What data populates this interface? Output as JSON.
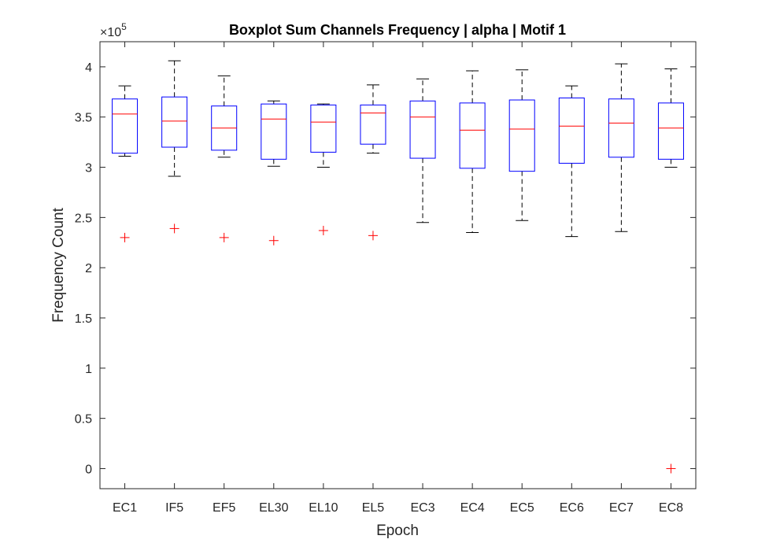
{
  "chart_data": {
    "type": "box",
    "title": "Boxplot Sum Channels Frequency | alpha | Motif 1",
    "xlabel": "Epoch",
    "ylabel": "Frequency Count",
    "y_multiplier_label": "×10",
    "y_multiplier_exponent": "5",
    "ylim": [
      -0.2,
      4.25
    ],
    "yticks": [
      0,
      0.5,
      1,
      1.5,
      2,
      2.5,
      3,
      3.5,
      4
    ],
    "ytick_labels": [
      "0",
      "0.5",
      "1",
      "1.5",
      "2",
      "2.5",
      "3",
      "3.5",
      "4"
    ],
    "categories": [
      "EC1",
      "IF5",
      "EF5",
      "EL30",
      "EL10",
      "EL5",
      "EC3",
      "EC4",
      "EC5",
      "EC6",
      "EC7",
      "EC8"
    ],
    "boxes": [
      {
        "q1": 3.14,
        "median": 3.53,
        "q3": 3.68,
        "whisker_low": 3.11,
        "whisker_high": 3.81,
        "outliers": [
          2.3
        ]
      },
      {
        "q1": 3.2,
        "median": 3.46,
        "q3": 3.7,
        "whisker_low": 2.91,
        "whisker_high": 4.06,
        "outliers": [
          2.39
        ]
      },
      {
        "q1": 3.17,
        "median": 3.39,
        "q3": 3.61,
        "whisker_low": 3.1,
        "whisker_high": 3.91,
        "outliers": [
          2.3
        ]
      },
      {
        "q1": 3.08,
        "median": 3.48,
        "q3": 3.63,
        "whisker_low": 3.01,
        "whisker_high": 3.66,
        "outliers": [
          2.27
        ]
      },
      {
        "q1": 3.15,
        "median": 3.45,
        "q3": 3.62,
        "whisker_low": 3.0,
        "whisker_high": 3.63,
        "outliers": [
          2.37
        ]
      },
      {
        "q1": 3.23,
        "median": 3.54,
        "q3": 3.62,
        "whisker_low": 3.14,
        "whisker_high": 3.82,
        "outliers": [
          2.32
        ]
      },
      {
        "q1": 3.09,
        "median": 3.5,
        "q3": 3.66,
        "whisker_low": 2.45,
        "whisker_high": 3.88,
        "outliers": []
      },
      {
        "q1": 2.99,
        "median": 3.37,
        "q3": 3.64,
        "whisker_low": 2.35,
        "whisker_high": 3.96,
        "outliers": []
      },
      {
        "q1": 2.96,
        "median": 3.38,
        "q3": 3.67,
        "whisker_low": 2.47,
        "whisker_high": 3.97,
        "outliers": []
      },
      {
        "q1": 3.04,
        "median": 3.41,
        "q3": 3.69,
        "whisker_low": 2.31,
        "whisker_high": 3.81,
        "outliers": []
      },
      {
        "q1": 3.1,
        "median": 3.44,
        "q3": 3.68,
        "whisker_low": 2.36,
        "whisker_high": 4.03,
        "outliers": []
      },
      {
        "q1": 3.08,
        "median": 3.39,
        "q3": 3.64,
        "whisker_low": 3.0,
        "whisker_high": 3.98,
        "outliers": [
          0.0
        ]
      }
    ],
    "colors": {
      "box": "#0000ff",
      "median": "#ff0000",
      "whisker": "#000000",
      "outlier": "#ff0000",
      "axis": "#262626"
    },
    "grid": false,
    "legend": "none"
  }
}
